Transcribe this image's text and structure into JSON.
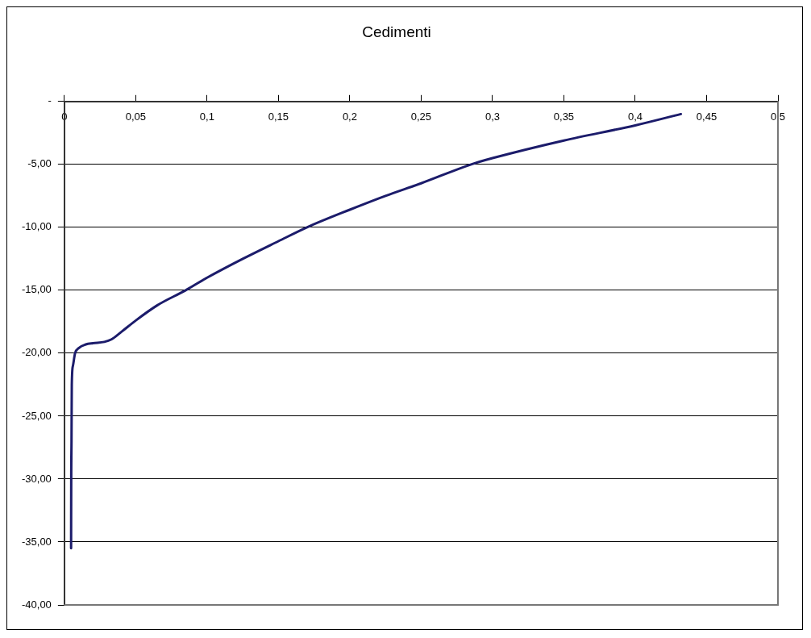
{
  "chart_data": {
    "type": "line",
    "title": "Cedimenti",
    "x": [
      0.0047,
      0.0048,
      0.005,
      0.0052,
      0.006,
      0.0075,
      0.01,
      0.015,
      0.02,
      0.028,
      0.033,
      0.04,
      0.05,
      0.065,
      0.085,
      0.1,
      0.125,
      0.15,
      0.17,
      0.2,
      0.225,
      0.25,
      0.285,
      0.3,
      0.35,
      0.4,
      0.432
    ],
    "series": [
      {
        "color": "#1c1c6b",
        "values": [
          -35.5,
          -30,
          -27,
          -22.5,
          -21,
          -20,
          -19.6,
          -19.3,
          -19.2,
          -19.1,
          -18.9,
          -18.3,
          -17.4,
          -16.2,
          -15,
          -14,
          -12.5,
          -11.1,
          -10,
          -8.6,
          -7.5,
          -6.5,
          -5,
          -4.5,
          -3.1,
          -1.9,
          -1.0
        ]
      }
    ],
    "xlim": [
      0,
      0.5
    ],
    "xticks": [
      {
        "value": 0,
        "label": "0"
      },
      {
        "value": 0.05,
        "label": "0,05"
      },
      {
        "value": 0.1,
        "label": "0,1"
      },
      {
        "value": 0.15,
        "label": "0,15"
      },
      {
        "value": 0.2,
        "label": "0,2"
      },
      {
        "value": 0.25,
        "label": "0,25"
      },
      {
        "value": 0.3,
        "label": "0,3"
      },
      {
        "value": 0.35,
        "label": "0,35"
      },
      {
        "value": 0.4,
        "label": "0,4"
      },
      {
        "value": 0.45,
        "label": "0,45"
      },
      {
        "value": 0.5,
        "label": "0,5"
      }
    ],
    "ylim": [
      -40,
      0
    ],
    "yticks": [
      {
        "value": 0,
        "label": "-"
      },
      {
        "value": -5,
        "label": "-5,00"
      },
      {
        "value": -10,
        "label": "-10,00"
      },
      {
        "value": -15,
        "label": "-15,00"
      },
      {
        "value": -20,
        "label": "-20,00"
      },
      {
        "value": -25,
        "label": "-25,00"
      },
      {
        "value": -30,
        "label": "-30,00"
      },
      {
        "value": -35,
        "label": "-35,00"
      },
      {
        "value": -40,
        "label": "-40,00"
      }
    ],
    "grid": "y",
    "legend": false,
    "marker": "none",
    "line_style": "solid"
  }
}
